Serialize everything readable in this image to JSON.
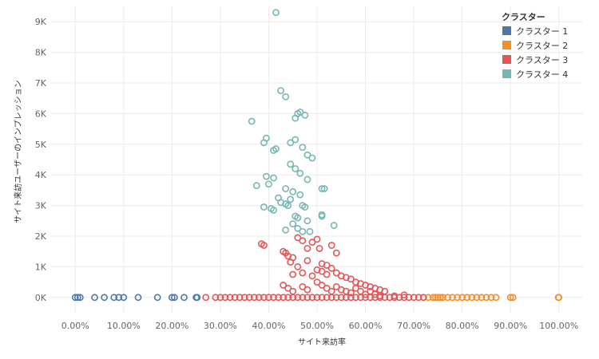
{
  "chart_data": {
    "type": "scatter",
    "xlabel": "サイト来訪率",
    "ylabel": "サイト来訪ユーザーのインプレッション",
    "xlim": [
      -0.05,
      1.05
    ],
    "ylim": [
      -500,
      9500
    ],
    "x_ticks": [
      "0.00%",
      "10.00%",
      "20.00%",
      "30.00%",
      "40.00%",
      "50.00%",
      "60.00%",
      "70.00%",
      "80.00%",
      "90.00%",
      "100.00%"
    ],
    "y_ticks": [
      "0K",
      "1K",
      "2K",
      "3K",
      "4K",
      "5K",
      "6K",
      "7K",
      "8K",
      "9K"
    ],
    "legend": {
      "title": "クラスター",
      "placement": "top-right"
    },
    "series": [
      {
        "name": "クラスター 1",
        "color": "#4e79a7",
        "points": [
          [
            0.0,
            0
          ],
          [
            0.005,
            0
          ],
          [
            0.01,
            0
          ],
          [
            0.04,
            0
          ],
          [
            0.06,
            0
          ],
          [
            0.08,
            0
          ],
          [
            0.09,
            0
          ],
          [
            0.1,
            0
          ],
          [
            0.13,
            0
          ],
          [
            0.17,
            0
          ],
          [
            0.2,
            0
          ],
          [
            0.205,
            0
          ],
          [
            0.225,
            0
          ],
          [
            0.25,
            0
          ],
          [
            0.252,
            0
          ]
        ]
      },
      {
        "name": "クラスター 2",
        "color": "#f28e2b",
        "points": [
          [
            0.72,
            0
          ],
          [
            0.73,
            0
          ],
          [
            0.74,
            0
          ],
          [
            0.745,
            0
          ],
          [
            0.75,
            0
          ],
          [
            0.755,
            0
          ],
          [
            0.76,
            0
          ],
          [
            0.77,
            0
          ],
          [
            0.78,
            0
          ],
          [
            0.79,
            0
          ],
          [
            0.8,
            0
          ],
          [
            0.81,
            0
          ],
          [
            0.82,
            0
          ],
          [
            0.83,
            0
          ],
          [
            0.84,
            0
          ],
          [
            0.85,
            0
          ],
          [
            0.86,
            0
          ],
          [
            0.87,
            0
          ],
          [
            0.9,
            0
          ],
          [
            0.905,
            0
          ],
          [
            0.999,
            0
          ],
          [
            1.0,
            0
          ]
        ]
      },
      {
        "name": "クラスター 3",
        "color": "#e15759",
        "points": [
          [
            0.27,
            0
          ],
          [
            0.29,
            0
          ],
          [
            0.3,
            0
          ],
          [
            0.31,
            0
          ],
          [
            0.32,
            0
          ],
          [
            0.33,
            0
          ],
          [
            0.34,
            0
          ],
          [
            0.35,
            0
          ],
          [
            0.36,
            0
          ],
          [
            0.37,
            0
          ],
          [
            0.38,
            0
          ],
          [
            0.39,
            0
          ],
          [
            0.4,
            0
          ],
          [
            0.41,
            0
          ],
          [
            0.42,
            0
          ],
          [
            0.43,
            0
          ],
          [
            0.44,
            0
          ],
          [
            0.45,
            0
          ],
          [
            0.46,
            0
          ],
          [
            0.47,
            0
          ],
          [
            0.48,
            0
          ],
          [
            0.49,
            0
          ],
          [
            0.5,
            0
          ],
          [
            0.51,
            0
          ],
          [
            0.52,
            0
          ],
          [
            0.53,
            0
          ],
          [
            0.54,
            0
          ],
          [
            0.55,
            0
          ],
          [
            0.56,
            0
          ],
          [
            0.57,
            0
          ],
          [
            0.58,
            0
          ],
          [
            0.59,
            0
          ],
          [
            0.6,
            0
          ],
          [
            0.61,
            0
          ],
          [
            0.62,
            0
          ],
          [
            0.63,
            0
          ],
          [
            0.64,
            0
          ],
          [
            0.65,
            0
          ],
          [
            0.66,
            0
          ],
          [
            0.67,
            0
          ],
          [
            0.68,
            0
          ],
          [
            0.69,
            0
          ],
          [
            0.7,
            0
          ],
          [
            0.71,
            0
          ],
          [
            0.72,
            0
          ],
          [
            0.385,
            1750
          ],
          [
            0.39,
            1700
          ],
          [
            0.43,
            1500
          ],
          [
            0.435,
            1450
          ],
          [
            0.44,
            1350
          ],
          [
            0.445,
            1150
          ],
          [
            0.45,
            1300
          ],
          [
            0.46,
            1950
          ],
          [
            0.47,
            1850
          ],
          [
            0.48,
            1600
          ],
          [
            0.49,
            1800
          ],
          [
            0.5,
            1900
          ],
          [
            0.505,
            1600
          ],
          [
            0.51,
            1100
          ],
          [
            0.52,
            1050
          ],
          [
            0.53,
            1700
          ],
          [
            0.54,
            1450
          ],
          [
            0.45,
            750
          ],
          [
            0.46,
            1000
          ],
          [
            0.47,
            800
          ],
          [
            0.48,
            1200
          ],
          [
            0.49,
            700
          ],
          [
            0.5,
            900
          ],
          [
            0.51,
            850
          ],
          [
            0.52,
            750
          ],
          [
            0.53,
            950
          ],
          [
            0.54,
            800
          ],
          [
            0.55,
            700
          ],
          [
            0.56,
            650
          ],
          [
            0.57,
            600
          ],
          [
            0.58,
            500
          ],
          [
            0.59,
            450
          ],
          [
            0.6,
            400
          ],
          [
            0.61,
            350
          ],
          [
            0.62,
            300
          ],
          [
            0.63,
            250
          ],
          [
            0.64,
            200
          ],
          [
            0.43,
            400
          ],
          [
            0.44,
            300
          ],
          [
            0.45,
            200
          ],
          [
            0.47,
            350
          ],
          [
            0.48,
            250
          ],
          [
            0.5,
            500
          ],
          [
            0.51,
            400
          ],
          [
            0.52,
            300
          ],
          [
            0.53,
            200
          ],
          [
            0.54,
            350
          ],
          [
            0.55,
            250
          ],
          [
            0.56,
            200
          ],
          [
            0.57,
            150
          ],
          [
            0.58,
            300
          ],
          [
            0.59,
            200
          ],
          [
            0.6,
            100
          ],
          [
            0.61,
            200
          ],
          [
            0.62,
            100
          ],
          [
            0.63,
            50
          ],
          [
            0.66,
            50
          ],
          [
            0.68,
            80
          ]
        ]
      },
      {
        "name": "クラスター 4",
        "color": "#76b7b2",
        "points": [
          [
            0.415,
            9300
          ],
          [
            0.425,
            6750
          ],
          [
            0.435,
            6550
          ],
          [
            0.365,
            5750
          ],
          [
            0.46,
            6000
          ],
          [
            0.465,
            6050
          ],
          [
            0.475,
            5950
          ],
          [
            0.455,
            5850
          ],
          [
            0.395,
            5200
          ],
          [
            0.39,
            5050
          ],
          [
            0.41,
            4800
          ],
          [
            0.415,
            4850
          ],
          [
            0.455,
            5150
          ],
          [
            0.445,
            5050
          ],
          [
            0.47,
            4900
          ],
          [
            0.48,
            4650
          ],
          [
            0.49,
            4550
          ],
          [
            0.445,
            4350
          ],
          [
            0.455,
            4200
          ],
          [
            0.465,
            4050
          ],
          [
            0.48,
            3850
          ],
          [
            0.395,
            3950
          ],
          [
            0.41,
            3900
          ],
          [
            0.375,
            3650
          ],
          [
            0.4,
            3700
          ],
          [
            0.435,
            3550
          ],
          [
            0.45,
            3450
          ],
          [
            0.465,
            3350
          ],
          [
            0.445,
            3200
          ],
          [
            0.42,
            3250
          ],
          [
            0.425,
            3100
          ],
          [
            0.435,
            3050
          ],
          [
            0.44,
            3000
          ],
          [
            0.47,
            3000
          ],
          [
            0.475,
            2950
          ],
          [
            0.39,
            2950
          ],
          [
            0.405,
            2900
          ],
          [
            0.41,
            2850
          ],
          [
            0.455,
            2650
          ],
          [
            0.46,
            2600
          ],
          [
            0.51,
            3550
          ],
          [
            0.515,
            3550
          ],
          [
            0.51,
            2700
          ],
          [
            0.51,
            2650
          ],
          [
            0.45,
            2400
          ],
          [
            0.46,
            2250
          ],
          [
            0.435,
            2200
          ],
          [
            0.48,
            2500
          ],
          [
            0.47,
            2150
          ],
          [
            0.485,
            2150
          ],
          [
            0.535,
            2350
          ]
        ]
      }
    ]
  }
}
